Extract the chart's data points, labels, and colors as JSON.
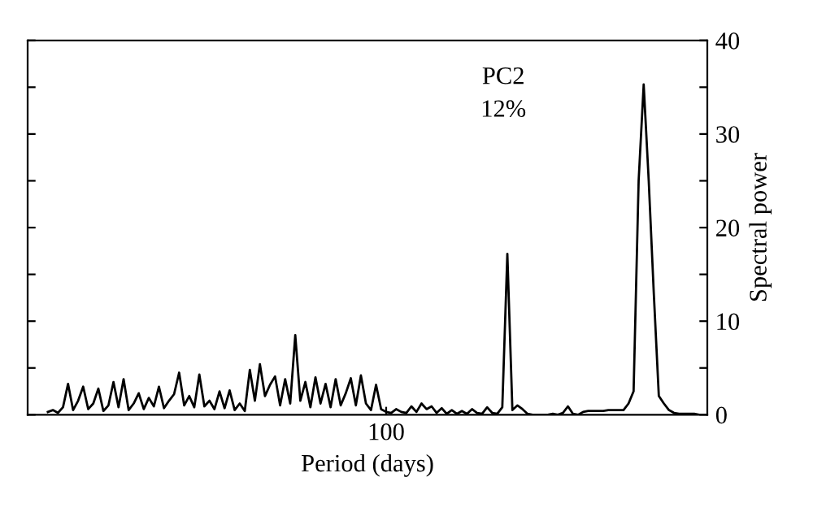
{
  "chart_data": {
    "type": "line",
    "xlabel": "Period (days)",
    "ylabel": "Spectral power",
    "annotations": [
      "PC2\n12%"
    ],
    "categories": [
      null,
      null,
      null,
      null,
      null,
      null,
      null,
      null,
      null,
      null,
      null,
      null,
      null,
      null,
      null,
      null,
      null,
      null,
      null,
      null,
      null,
      null,
      null,
      null,
      null,
      null,
      null,
      null,
      null,
      null,
      null,
      null,
      null,
      null,
      null,
      null,
      null,
      null,
      null,
      null,
      null,
      null,
      null,
      null,
      null,
      null,
      null,
      null,
      null,
      null,
      null,
      null,
      null,
      null,
      null,
      null,
      null,
      null,
      null,
      null,
      null,
      null,
      null,
      null,
      null,
      null,
      null,
      "100",
      null,
      null,
      null,
      null,
      null,
      null,
      null,
      null,
      null,
      null,
      null,
      null,
      null,
      null,
      null,
      null,
      null,
      null,
      null,
      null,
      null,
      null,
      null,
      null,
      null,
      null,
      null,
      null,
      null,
      null,
      null,
      null,
      null,
      null,
      null,
      null,
      null,
      null,
      null,
      null,
      null,
      null,
      null,
      null,
      null,
      null,
      null,
      null,
      null,
      null,
      null,
      null,
      null,
      null,
      null,
      null,
      null,
      null,
      null,
      null,
      null,
      null,
      null
    ],
    "series": [
      {
        "color": "#000000",
        "values": [
          0.3,
          0.5,
          0.2,
          0.8,
          3.3,
          0.5,
          1.5,
          3.0,
          0.6,
          1.2,
          2.8,
          0.4,
          1.0,
          3.5,
          0.8,
          3.8,
          0.5,
          1.2,
          2.3,
          0.6,
          1.8,
          0.9,
          3.0,
          0.7,
          1.5,
          2.2,
          4.5,
          1.0,
          2.0,
          0.8,
          4.3,
          0.9,
          1.5,
          0.6,
          2.5,
          0.7,
          2.6,
          0.5,
          1.2,
          0.4,
          4.8,
          1.5,
          5.4,
          2.0,
          3.2,
          4.1,
          1.0,
          3.8,
          1.2,
          8.5,
          1.5,
          3.5,
          0.8,
          4.0,
          1.2,
          3.3,
          0.8,
          3.8,
          1.0,
          2.3,
          3.9,
          1.0,
          4.2,
          1.2,
          0.5,
          3.2,
          0.6,
          0.3,
          0.2,
          0.6,
          0.3,
          0.2,
          0.9,
          0.3,
          1.2,
          0.6,
          0.9,
          0.2,
          0.7,
          0.1,
          0.5,
          0.1,
          0.4,
          0.1,
          0.6,
          0.2,
          0.1,
          0.8,
          0.2,
          0.1,
          0.8,
          17.2,
          0.5,
          1.0,
          0.6,
          0.1,
          0,
          0,
          0,
          0,
          0.1,
          0,
          0.2,
          0.9,
          0.1,
          0,
          0.3,
          0.4,
          0.4,
          0.4,
          0.4,
          0.5,
          0.5,
          0.5,
          0.5,
          1.2,
          2.5,
          25,
          35.3,
          25,
          13,
          2.0,
          1.2,
          0.5,
          0.2,
          0.1,
          0.1,
          0.1,
          0.1,
          0,
          0
        ]
      }
    ],
    "ylim": [
      0,
      40
    ],
    "yticks": [
      0,
      {
        "value": 5,
        "label": null
      },
      10,
      {
        "value": 15,
        "label": null
      },
      20,
      {
        "value": 25,
        "label": null
      },
      30,
      {
        "value": 35,
        "label": null
      },
      40
    ],
    "grid": false,
    "legend": false,
    "marker": "none",
    "line_style": "solid"
  }
}
